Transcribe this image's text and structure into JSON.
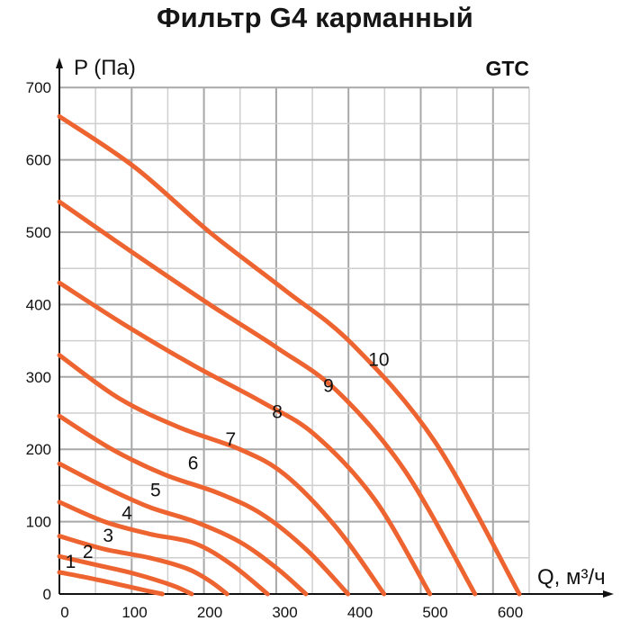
{
  "header": {
    "title": "Фильтр G4 карманный",
    "brand": "GTC"
  },
  "axes": {
    "ylabel": "P (Па)",
    "xlabel": "Q, м³/ч"
  },
  "colors": {
    "curve": "#ee6431",
    "grid_major": "#a8a8a8",
    "grid_minor": "#cfcfcf",
    "axis": "#111111"
  },
  "chart_data": {
    "type": "line",
    "title": "Фильтр G4 карманный",
    "xlabel": "Q, м³/ч",
    "ylabel": "P (Па)",
    "xlim": [
      0,
      625
    ],
    "ylim": [
      0,
      700
    ],
    "xticks": [
      0,
      100,
      200,
      300,
      400,
      500,
      600
    ],
    "yticks": [
      0,
      100,
      200,
      300,
      400,
      500,
      600,
      700
    ],
    "grid": true,
    "legend": "inline curve labels 1–10",
    "series": [
      {
        "name": "1",
        "x": [
          0,
          40,
          80,
          110,
          137
        ],
        "y": [
          30,
          22,
          13,
          6,
          0
        ]
      },
      {
        "name": "2",
        "x": [
          0,
          50,
          100,
          150,
          176
        ],
        "y": [
          52,
          40,
          28,
          12,
          0
        ]
      },
      {
        "name": "3",
        "x": [
          0,
          60,
          120,
          170,
          200,
          223
        ],
        "y": [
          80,
          62,
          50,
          35,
          18,
          0
        ]
      },
      {
        "name": "4",
        "x": [
          0,
          60,
          120,
          180,
          230,
          277
        ],
        "y": [
          127,
          100,
          83,
          70,
          40,
          0
        ]
      },
      {
        "name": "5",
        "x": [
          0,
          60,
          120,
          180,
          240,
          290,
          328
        ],
        "y": [
          180,
          148,
          120,
          100,
          72,
          35,
          0
        ]
      },
      {
        "name": "6",
        "x": [
          0,
          70,
          140,
          210,
          270,
          330,
          384
        ],
        "y": [
          246,
          200,
          165,
          140,
          110,
          60,
          0
        ]
      },
      {
        "name": "7",
        "x": [
          0,
          80,
          160,
          240,
          300,
          370,
          432
        ],
        "y": [
          330,
          270,
          230,
          200,
          165,
          90,
          0
        ]
      },
      {
        "name": "8",
        "x": [
          0,
          90,
          180,
          270,
          340,
          420,
          493
        ],
        "y": [
          430,
          370,
          315,
          265,
          220,
          130,
          0
        ]
      },
      {
        "name": "9",
        "x": [
          0,
          100,
          200,
          290,
          370,
          460,
          553
        ],
        "y": [
          542,
          470,
          400,
          340,
          280,
          170,
          0
        ]
      },
      {
        "name": "10",
        "x": [
          0,
          100,
          200,
          300,
          390,
          500,
          612
        ],
        "y": [
          660,
          590,
          500,
          420,
          345,
          210,
          0
        ]
      }
    ],
    "curve_labels": [
      {
        "text": "1",
        "x": 15,
        "y": 36
      },
      {
        "text": "2",
        "x": 38,
        "y": 50
      },
      {
        "text": "3",
        "x": 65,
        "y": 72
      },
      {
        "text": "4",
        "x": 90,
        "y": 103
      },
      {
        "text": "5",
        "x": 128,
        "y": 135
      },
      {
        "text": "6",
        "x": 178,
        "y": 172
      },
      {
        "text": "7",
        "x": 228,
        "y": 205
      },
      {
        "text": "8",
        "x": 290,
        "y": 243
      },
      {
        "text": "9",
        "x": 358,
        "y": 279
      },
      {
        "text": "10",
        "x": 425,
        "y": 315
      }
    ]
  }
}
